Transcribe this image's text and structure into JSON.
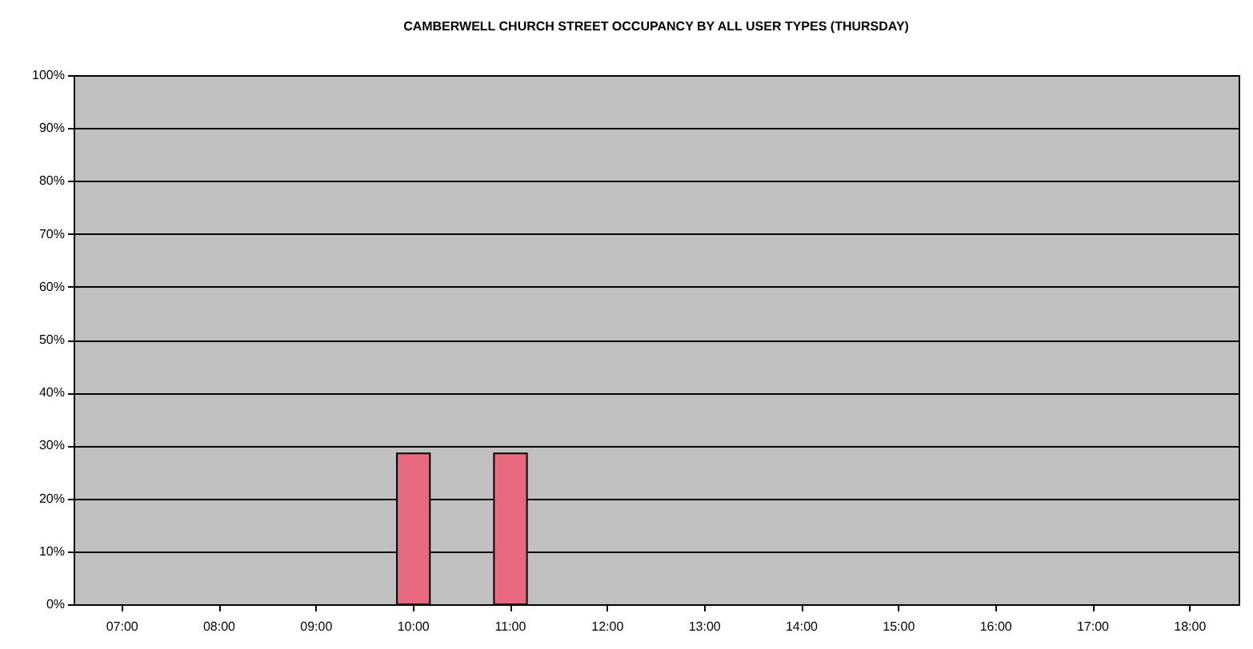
{
  "chart_data": {
    "type": "bar",
    "title": "CAMBERWELL CHURCH STREET OCCUPANCY BY ALL USER TYPES (THURSDAY)",
    "categories": [
      "07:00",
      "08:00",
      "09:00",
      "10:00",
      "11:00",
      "12:00",
      "13:00",
      "14:00",
      "15:00",
      "16:00",
      "17:00",
      "18:00"
    ],
    "series": [
      {
        "color": "#e8687e",
        "values": [
          0,
          0,
          0,
          28.5,
          28.5,
          0,
          0,
          0,
          0,
          0,
          0,
          0
        ]
      }
    ],
    "ylim": [
      0,
      100
    ],
    "yticks": [
      {
        "value": 0,
        "label": "0%"
      },
      {
        "value": 10,
        "label": "10%"
      },
      {
        "value": 20,
        "label": "20%"
      },
      {
        "value": 30,
        "label": "30%"
      },
      {
        "value": 40,
        "label": "40%"
      },
      {
        "value": 50,
        "label": "50%"
      },
      {
        "value": 60,
        "label": "60%"
      },
      {
        "value": 70,
        "label": "70%"
      },
      {
        "value": 80,
        "label": "80%"
      },
      {
        "value": 90,
        "label": "90%"
      },
      {
        "value": 100,
        "label": "100%"
      }
    ],
    "grid": "y",
    "legend": false
  }
}
